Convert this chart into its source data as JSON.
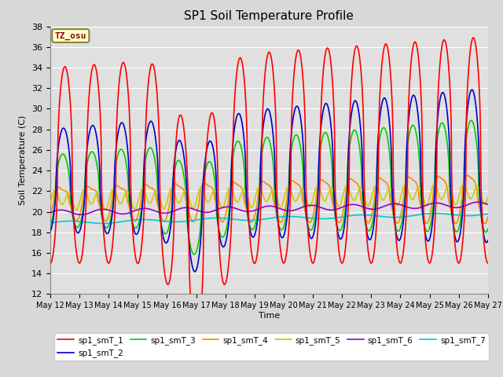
{
  "title": "SP1 Soil Temperature Profile",
  "xlabel": "Time",
  "ylabel": "Soil Temperature (C)",
  "ylim": [
    12,
    38
  ],
  "yticks": [
    12,
    14,
    16,
    18,
    20,
    22,
    24,
    26,
    28,
    30,
    32,
    34,
    36,
    38
  ],
  "xtick_labels": [
    "May 12",
    "May 13",
    "May 14",
    "May 15",
    "May 16",
    "May 17",
    "May 18",
    "May 19",
    "May 20",
    "May 21",
    "May 22",
    "May 23",
    "May 24",
    "May 25",
    "May 26",
    "May 27"
  ],
  "series": {
    "sp1_smT_1": {
      "color": "#FF0000",
      "lw": 1.2,
      "label": "sp1_smT_1"
    },
    "sp1_smT_2": {
      "color": "#0000CC",
      "lw": 1.2,
      "label": "sp1_smT_2"
    },
    "sp1_smT_3": {
      "color": "#00CC00",
      "lw": 1.2,
      "label": "sp1_smT_3"
    },
    "sp1_smT_4": {
      "color": "#FF8800",
      "lw": 1.2,
      "label": "sp1_smT_4"
    },
    "sp1_smT_5": {
      "color": "#CCCC00",
      "lw": 1.2,
      "label": "sp1_smT_5"
    },
    "sp1_smT_6": {
      "color": "#9900CC",
      "lw": 1.2,
      "label": "sp1_smT_6"
    },
    "sp1_smT_7": {
      "color": "#00CCCC",
      "lw": 1.2,
      "label": "sp1_smT_7"
    }
  },
  "tz_label": "TZ_osu",
  "bg_color": "#D8D8D8",
  "plot_bg_color": "#E0E0E0",
  "n_days": 15,
  "pts_per_day": 144
}
